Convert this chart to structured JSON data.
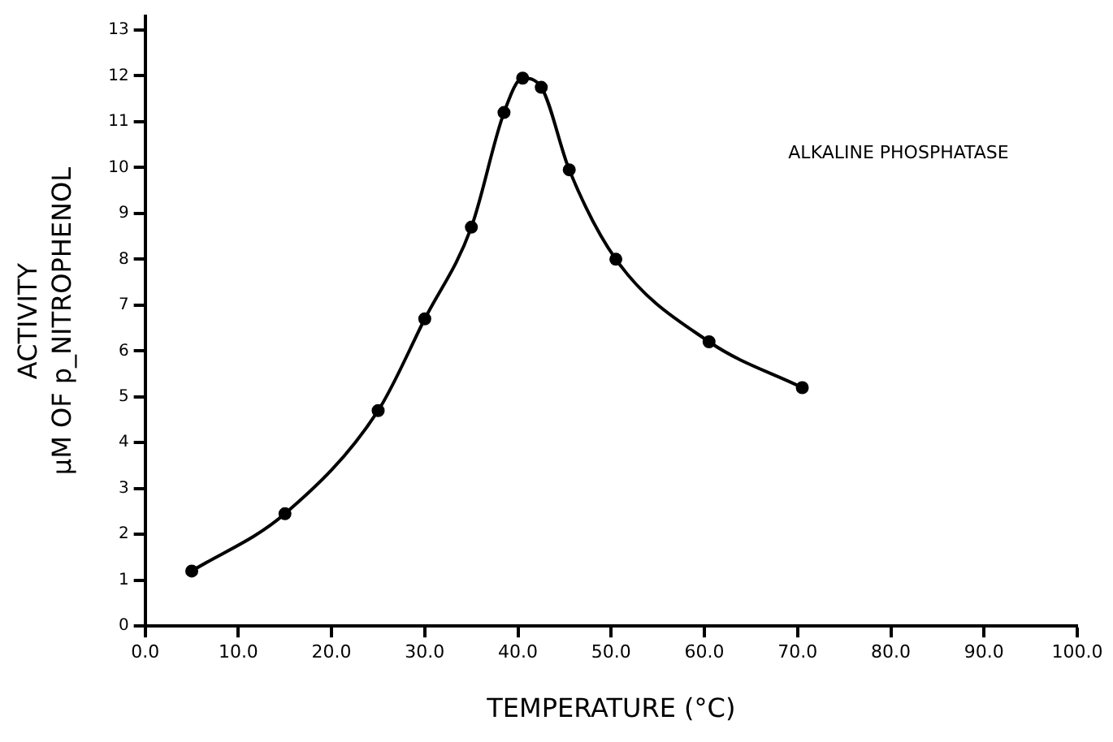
{
  "chart_data": {
    "type": "line",
    "xlabel": "TEMPERATURE (°C)",
    "ylabel": "ACTIVITY\nµM OF p_NITROPHENOL",
    "annotations": [
      "ALKALINE PHOSPHATASE"
    ],
    "series": [
      {
        "color": "#000000",
        "x": [
          5,
          15,
          25,
          30,
          35,
          38.5,
          40.5,
          42.5,
          45.5,
          50.5,
          60.5,
          70.5
        ],
        "values": [
          1.2,
          2.45,
          4.7,
          6.7,
          8.7,
          11.2,
          11.95,
          11.75,
          9.95,
          8.0,
          6.2,
          5.2
        ]
      }
    ],
    "xlim": [
      0,
      100
    ],
    "xticks": [
      {
        "value": 0,
        "label": "0.0"
      },
      {
        "value": 10,
        "label": "10.0"
      },
      {
        "value": 20,
        "label": "20.0"
      },
      {
        "value": 30,
        "label": "30.0"
      },
      {
        "value": 40,
        "label": "40.0"
      },
      {
        "value": 50,
        "label": "50.0"
      },
      {
        "value": 60,
        "label": "60.0"
      },
      {
        "value": 70,
        "label": "70.0"
      },
      {
        "value": 80,
        "label": "80.0"
      },
      {
        "value": 90,
        "label": "90.0"
      },
      {
        "value": 100,
        "label": "100.0"
      }
    ],
    "ylim": [
      0,
      13.3
    ],
    "yticks": [
      0,
      1,
      2,
      3,
      4,
      5,
      6,
      7,
      8,
      9,
      10,
      11,
      12,
      13
    ],
    "grid": false,
    "legend": false,
    "marker": "circle",
    "line_style": "solid"
  }
}
